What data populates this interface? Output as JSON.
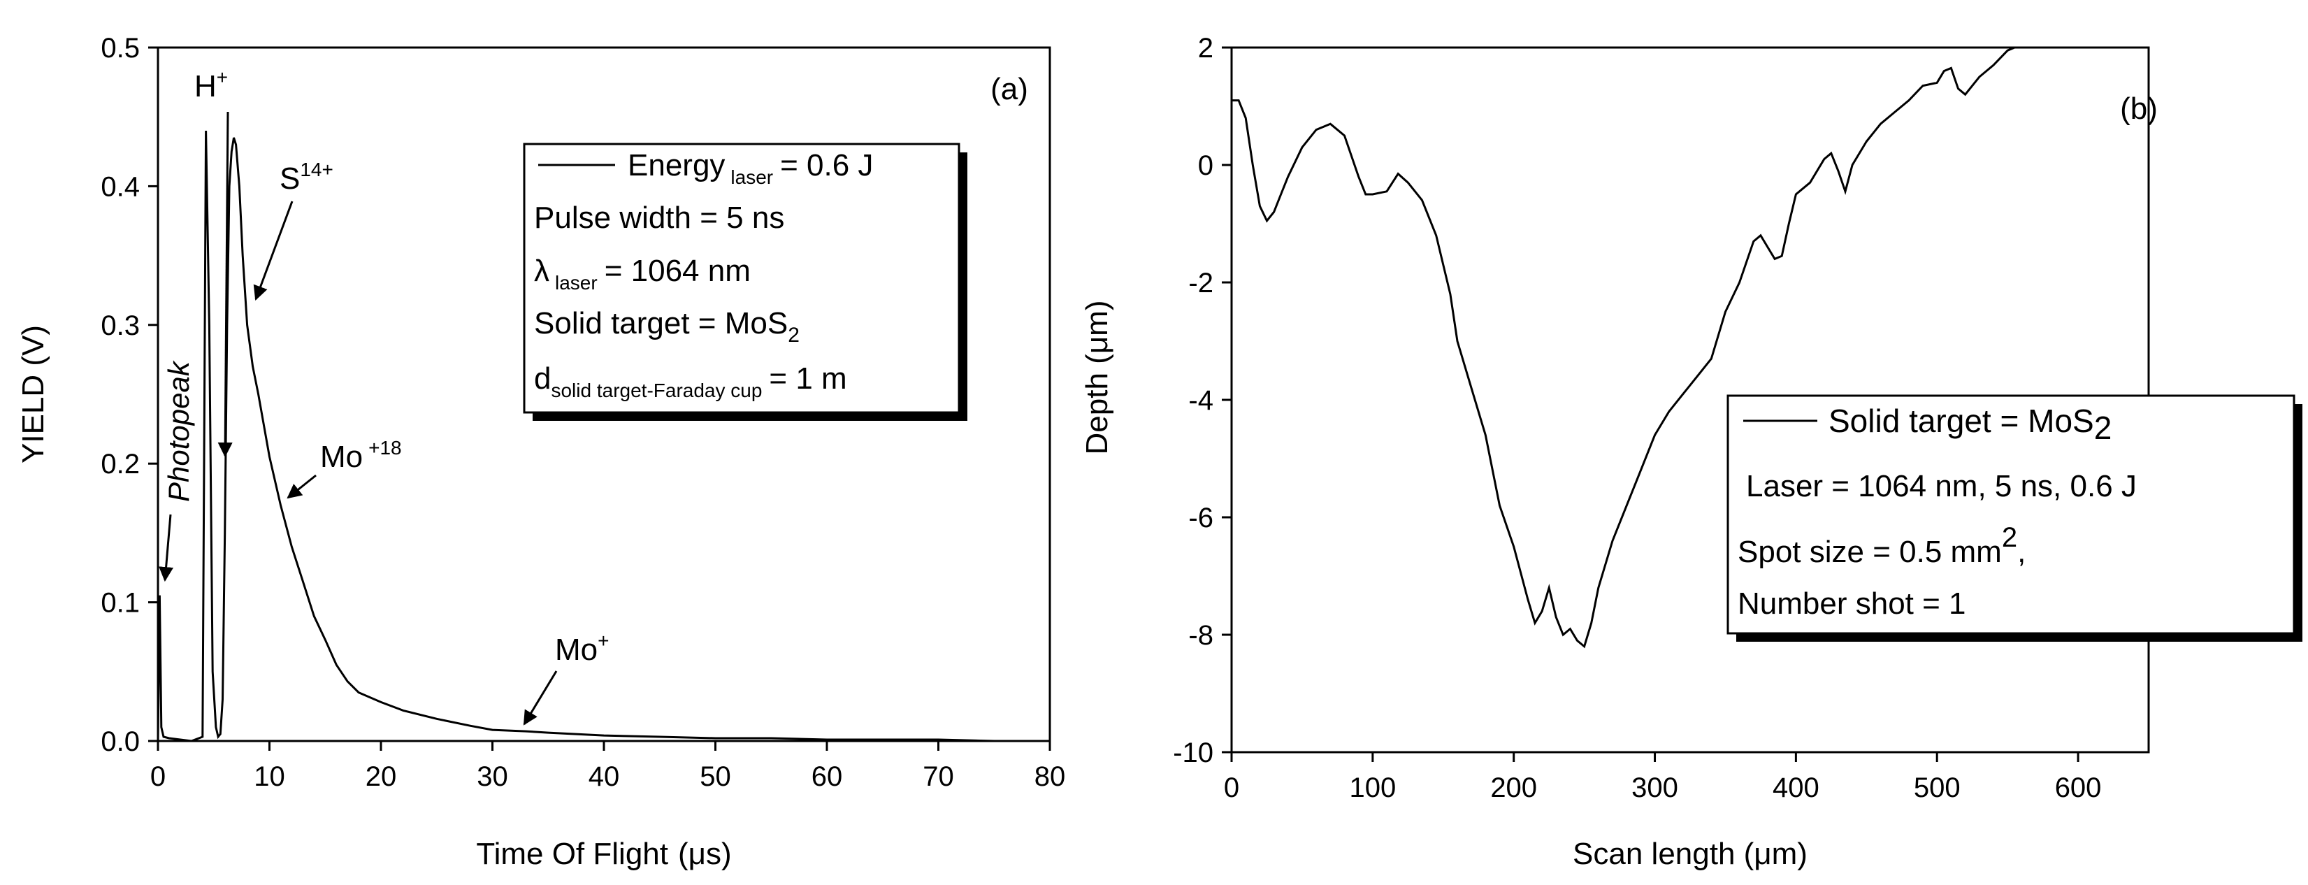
{
  "chart_data": [
    {
      "panel": "a",
      "type": "line",
      "panel_label": "(a)",
      "xlabel_main": "Time Of Flight",
      "xlabel_unit": "(μs)",
      "ylabel": "YIELD (V)",
      "xlim": [
        0,
        80
      ],
      "ylim": [
        0,
        0.5
      ],
      "xticks": [
        0,
        10,
        20,
        30,
        40,
        50,
        60,
        70,
        80
      ],
      "yticks": [
        0.0,
        0.1,
        0.2,
        0.3,
        0.4,
        0.5
      ],
      "ytick_labels": [
        "0.0",
        "0.1",
        "0.2",
        "0.3",
        "0.4",
        "0.5"
      ],
      "series": [
        {
          "name": "Energy laser = 0.6 J",
          "x": [
            0,
            0.15,
            0.3,
            0.5,
            1,
            2,
            3,
            4,
            4.3,
            4.6,
            4.9,
            5.2,
            5.4,
            5.6,
            5.8,
            6.0,
            6.2,
            6.4,
            6.6,
            6.8,
            7.0,
            7.3,
            7.6,
            8,
            8.5,
            9,
            10,
            11,
            12,
            13,
            14,
            15,
            16,
            17,
            18,
            20,
            22,
            25,
            28,
            30,
            33,
            35,
            40,
            45,
            50,
            55,
            60,
            65,
            70,
            75,
            80
          ],
          "y": [
            0.0,
            0.105,
            0.01,
            0.003,
            0.002,
            0.001,
            0.0,
            0.003,
            0.44,
            0.3,
            0.05,
            0.01,
            0.003,
            0.005,
            0.03,
            0.15,
            0.3,
            0.4,
            0.425,
            0.435,
            0.43,
            0.4,
            0.35,
            0.3,
            0.27,
            0.25,
            0.205,
            0.17,
            0.14,
            0.115,
            0.09,
            0.073,
            0.055,
            0.043,
            0.035,
            0.028,
            0.022,
            0.016,
            0.011,
            0.008,
            0.007,
            0.006,
            0.004,
            0.003,
            0.002,
            0.002,
            0.001,
            0.001,
            0.001,
            0.0,
            0.0
          ]
        }
      ],
      "annotations": {
        "photopeak": "Photopeak",
        "h_base": "H",
        "h_sup": "+",
        "s_base": "S",
        "s_sup": "14+",
        "mo18_base": "Mo",
        "mo18_sup": "+18",
        "mo1_base": "Mo",
        "mo1_sup": "+"
      },
      "legend": {
        "energy_text": "Energy",
        "energy_sub": "laser",
        "energy_value": "= 0.6 J",
        "pulse_width": "Pulse width = 5 ns",
        "lambda_symbol": "λ",
        "lambda_sub": "laser",
        "lambda_value": "= 1064 nm",
        "solid_target": "Solid target = MoS",
        "solid_target_sub": "2",
        "distance_d": "d",
        "distance_sub": "solid target-Faraday cup",
        "distance_value": "= 1 m"
      }
    },
    {
      "panel": "b",
      "type": "line",
      "panel_label": "(b)",
      "xlabel": "Scan length (μm)",
      "ylabel": "Depth (μm)",
      "xlim": [
        0,
        650
      ],
      "ylim": [
        -10,
        2
      ],
      "xticks": [
        0,
        100,
        200,
        300,
        400,
        500,
        600
      ],
      "yticks": [
        -10,
        -8,
        -6,
        -4,
        -2,
        0,
        2
      ],
      "series": [
        {
          "name": "Solid target = MoS2",
          "x": [
            0,
            5,
            10,
            15,
            20,
            25,
            30,
            35,
            40,
            50,
            60,
            70,
            80,
            90,
            95,
            100,
            110,
            118,
            125,
            135,
            145,
            155,
            160,
            170,
            180,
            190,
            200,
            210,
            215,
            220,
            225,
            230,
            235,
            240,
            245,
            250,
            255,
            260,
            270,
            280,
            290,
            300,
            310,
            320,
            330,
            340,
            350,
            360,
            370,
            375,
            380,
            385,
            390,
            395,
            400,
            410,
            420,
            425,
            430,
            435,
            440,
            450,
            460,
            470,
            480,
            490,
            500,
            505,
            510,
            515,
            520,
            530,
            540,
            550,
            555
          ],
          "y": [
            1.1,
            1.1,
            0.8,
            0.0,
            -0.7,
            -0.95,
            -0.8,
            -0.5,
            -0.2,
            0.3,
            0.6,
            0.7,
            0.5,
            -0.2,
            -0.5,
            -0.5,
            -0.45,
            -0.15,
            -0.3,
            -0.6,
            -1.2,
            -2.2,
            -3.0,
            -3.8,
            -4.6,
            -5.8,
            -6.5,
            -7.4,
            -7.8,
            -7.6,
            -7.2,
            -7.7,
            -8.0,
            -7.9,
            -8.1,
            -8.2,
            -7.8,
            -7.2,
            -6.4,
            -5.8,
            -5.2,
            -4.6,
            -4.2,
            -3.9,
            -3.6,
            -3.3,
            -2.5,
            -2.0,
            -1.3,
            -1.2,
            -1.4,
            -1.6,
            -1.55,
            -1.0,
            -0.5,
            -0.3,
            0.1,
            0.2,
            -0.1,
            -0.45,
            0.0,
            0.4,
            0.7,
            0.9,
            1.1,
            1.35,
            1.4,
            1.6,
            1.65,
            1.3,
            1.2,
            1.5,
            1.7,
            1.95,
            2.0
          ]
        }
      ],
      "legend": {
        "line1": "Solid target = MoS",
        "line1_sub": "2",
        "line2": "Laser = 1064 nm, 5 ns, 0.6 J",
        "line3": "Spot size = 0.5 mm",
        "line3_sup": "2",
        "line3_suffix": ",",
        "line4": "Number shot = 1"
      }
    }
  ]
}
